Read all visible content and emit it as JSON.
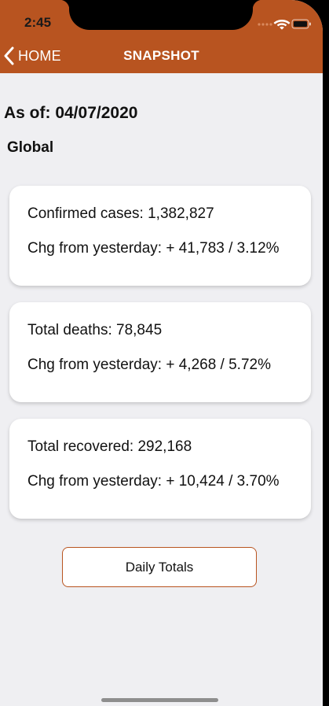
{
  "status_bar": {
    "time": "2:45",
    "icons": [
      "cellular-signal-icon",
      "wifi-icon",
      "battery-icon"
    ]
  },
  "nav": {
    "back_label": "HOME",
    "back_icon": "chevron-left-icon",
    "title": "SNAPSHOT"
  },
  "colors": {
    "header": "#b85420",
    "background": "#efeff2",
    "card": "#ffffff",
    "button_border": "#b85420"
  },
  "as_of": "As of: 04/07/2020",
  "region": "Global",
  "cards": [
    {
      "line1": "Confirmed cases: 1,382,827",
      "line2": "Chg from yesterday: + 41,783 / 3.12%"
    },
    {
      "line1": "Total deaths: 78,845",
      "line2": "Chg from yesterday: + 4,268 / 5.72%"
    },
    {
      "line1": "Total recovered: 292,168",
      "line2": "Chg from yesterday: + 10,424 / 3.70%"
    }
  ],
  "daily_totals_button": "Daily Totals"
}
